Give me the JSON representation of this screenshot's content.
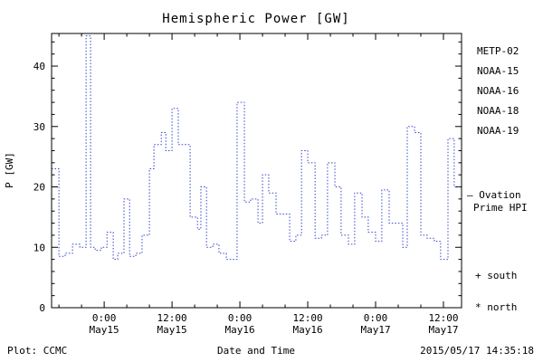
{
  "footer": {
    "credit": "Plot: CCMC",
    "timestamp": "2015/05/17 14:35:18"
  },
  "legend": {
    "satellites": [
      {
        "label": "METP-02",
        "color": "#000000"
      },
      {
        "label": "NOAA-15",
        "color": "#2233ee"
      },
      {
        "label": "NOAA-16",
        "color": "#33bbee"
      },
      {
        "label": "NOAA-18",
        "color": "#7fdd8f"
      },
      {
        "label": "NOAA-19",
        "color": "#ffaa55"
      }
    ],
    "ovation": {
      "line1": "– Ovation",
      "line2": "Prime HPI",
      "color": "#2233ee"
    },
    "south_marker": "+ south",
    "north_marker": "* north"
  },
  "chart_data": {
    "type": "line",
    "style": "step-plot, dotted",
    "title": "Hemispheric Power [GW]",
    "xlabel": "Date and Time",
    "ylabel": "P [GW]",
    "line_color": "#3344cc",
    "grid": false,
    "legend_position": "right margin",
    "x_unit": "hours since 2015-05-14 00:00 UT",
    "x_range": [
      14.7,
      87.2
    ],
    "y_range": [
      0,
      45.4
    ],
    "yticks": [
      0,
      10,
      20,
      30,
      40
    ],
    "y_minor_step": 2,
    "x_minor_step": 4,
    "xticks": [
      {
        "hour": 24,
        "time": "0:00",
        "date": "May15"
      },
      {
        "hour": 36,
        "time": "12:00",
        "date": "May15"
      },
      {
        "hour": 48,
        "time": "0:00",
        "date": "May16"
      },
      {
        "hour": 60,
        "time": "12:00",
        "date": "May16"
      },
      {
        "hour": 72,
        "time": "0:00",
        "date": "May17"
      },
      {
        "hour": 84,
        "time": "12:00",
        "date": "May17"
      }
    ],
    "steps": [
      [
        14.7,
        23
      ],
      [
        16.0,
        8.5
      ],
      [
        17.1,
        9
      ],
      [
        18.4,
        10.5
      ],
      [
        19.7,
        10
      ],
      [
        20.8,
        45
      ],
      [
        21.6,
        10
      ],
      [
        22.4,
        9.5
      ],
      [
        23.5,
        10
      ],
      [
        24.5,
        12.5
      ],
      [
        25.6,
        8
      ],
      [
        26.4,
        9
      ],
      [
        27.5,
        18
      ],
      [
        28.5,
        8.5
      ],
      [
        29.6,
        9
      ],
      [
        30.7,
        12
      ],
      [
        32.0,
        23
      ],
      [
        32.8,
        27
      ],
      [
        34.1,
        29
      ],
      [
        34.9,
        26
      ],
      [
        36.0,
        33
      ],
      [
        37.1,
        27
      ],
      [
        38.4,
        27
      ],
      [
        39.2,
        15
      ],
      [
        40.5,
        13
      ],
      [
        41.1,
        20
      ],
      [
        42.1,
        10
      ],
      [
        43.2,
        10.5
      ],
      [
        44.3,
        9
      ],
      [
        45.6,
        8
      ],
      [
        47.5,
        34
      ],
      [
        48.8,
        17.5
      ],
      [
        49.9,
        18
      ],
      [
        51.2,
        14
      ],
      [
        52.0,
        22
      ],
      [
        53.1,
        19
      ],
      [
        54.4,
        15.5
      ],
      [
        55.5,
        15.5
      ],
      [
        56.8,
        11
      ],
      [
        57.9,
        12
      ],
      [
        58.9,
        26
      ],
      [
        60.0,
        24
      ],
      [
        61.3,
        11.5
      ],
      [
        62.4,
        12
      ],
      [
        63.5,
        24
      ],
      [
        64.8,
        20
      ],
      [
        65.9,
        12
      ],
      [
        67.2,
        10.5
      ],
      [
        68.3,
        19
      ],
      [
        69.6,
        15
      ],
      [
        70.7,
        12.5
      ],
      [
        72.0,
        11
      ],
      [
        73.1,
        19.5
      ],
      [
        74.4,
        14
      ],
      [
        75.5,
        14
      ],
      [
        76.8,
        10
      ],
      [
        77.6,
        30
      ],
      [
        78.9,
        29
      ],
      [
        80.0,
        12
      ],
      [
        81.1,
        11.5
      ],
      [
        82.4,
        11
      ],
      [
        83.5,
        8
      ],
      [
        84.8,
        28
      ],
      [
        85.9,
        20
      ]
    ]
  }
}
